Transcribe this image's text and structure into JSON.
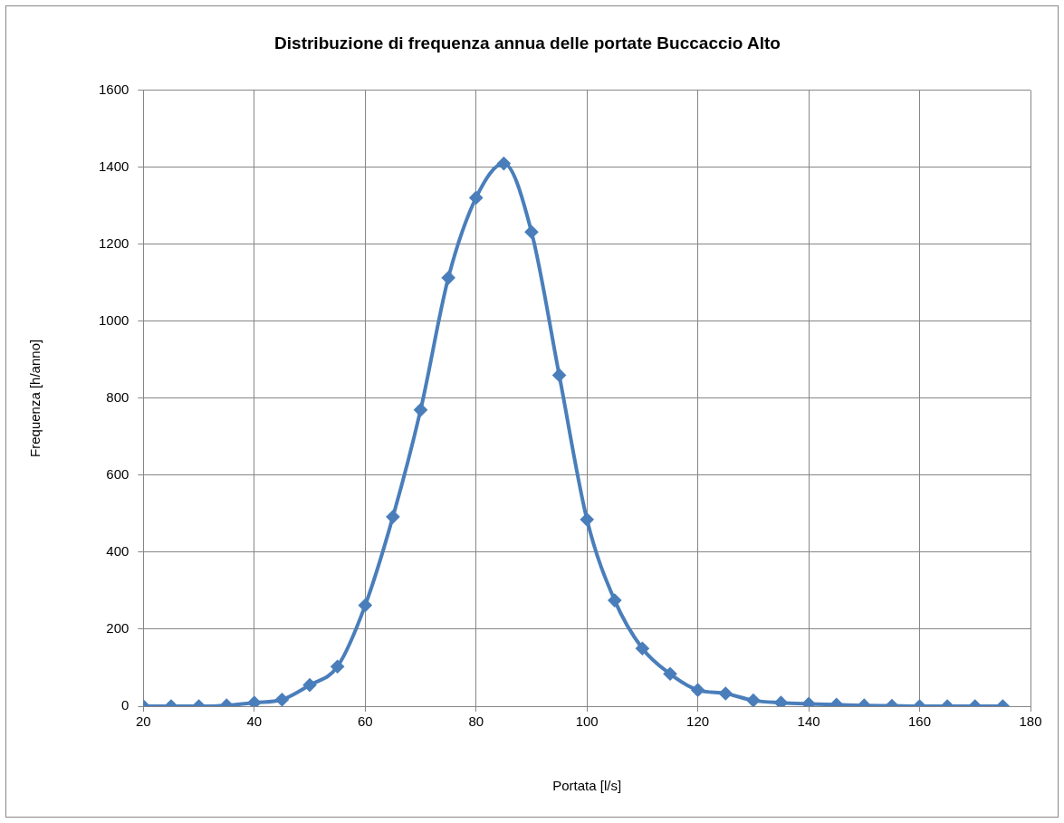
{
  "chart_data": {
    "type": "line",
    "title": "Distribuzione di frequenza annua delle portate Buccaccio Alto",
    "xlabel": "Portata [l/s]",
    "ylabel": "Frequenza [h/anno]",
    "x": [
      20,
      25,
      30,
      35,
      40,
      45,
      50,
      55,
      60,
      65,
      70,
      75,
      80,
      85,
      90,
      95,
      100,
      105,
      110,
      115,
      120,
      125,
      130,
      135,
      140,
      145,
      150,
      155,
      160,
      165,
      170,
      175
    ],
    "series": [
      {
        "color": "#4a7ebb",
        "values": [
          0,
          0,
          0,
          2,
          9,
          17,
          55,
          103,
          262,
          492,
          770,
          1113,
          1321,
          1410,
          1232,
          860,
          485,
          275,
          150,
          84,
          42,
          33,
          15,
          9,
          6,
          4,
          2,
          1,
          0,
          0,
          0,
          0
        ]
      }
    ],
    "xlim": [
      20,
      180
    ],
    "xticks": [
      20,
      40,
      60,
      80,
      100,
      120,
      140,
      160,
      180
    ],
    "ylim": [
      0,
      1600
    ],
    "yticks": [
      0,
      200,
      400,
      600,
      800,
      1000,
      1200,
      1400,
      1600
    ],
    "grid": true,
    "legend": false,
    "marker": "diamond",
    "line_style": "solid"
  }
}
